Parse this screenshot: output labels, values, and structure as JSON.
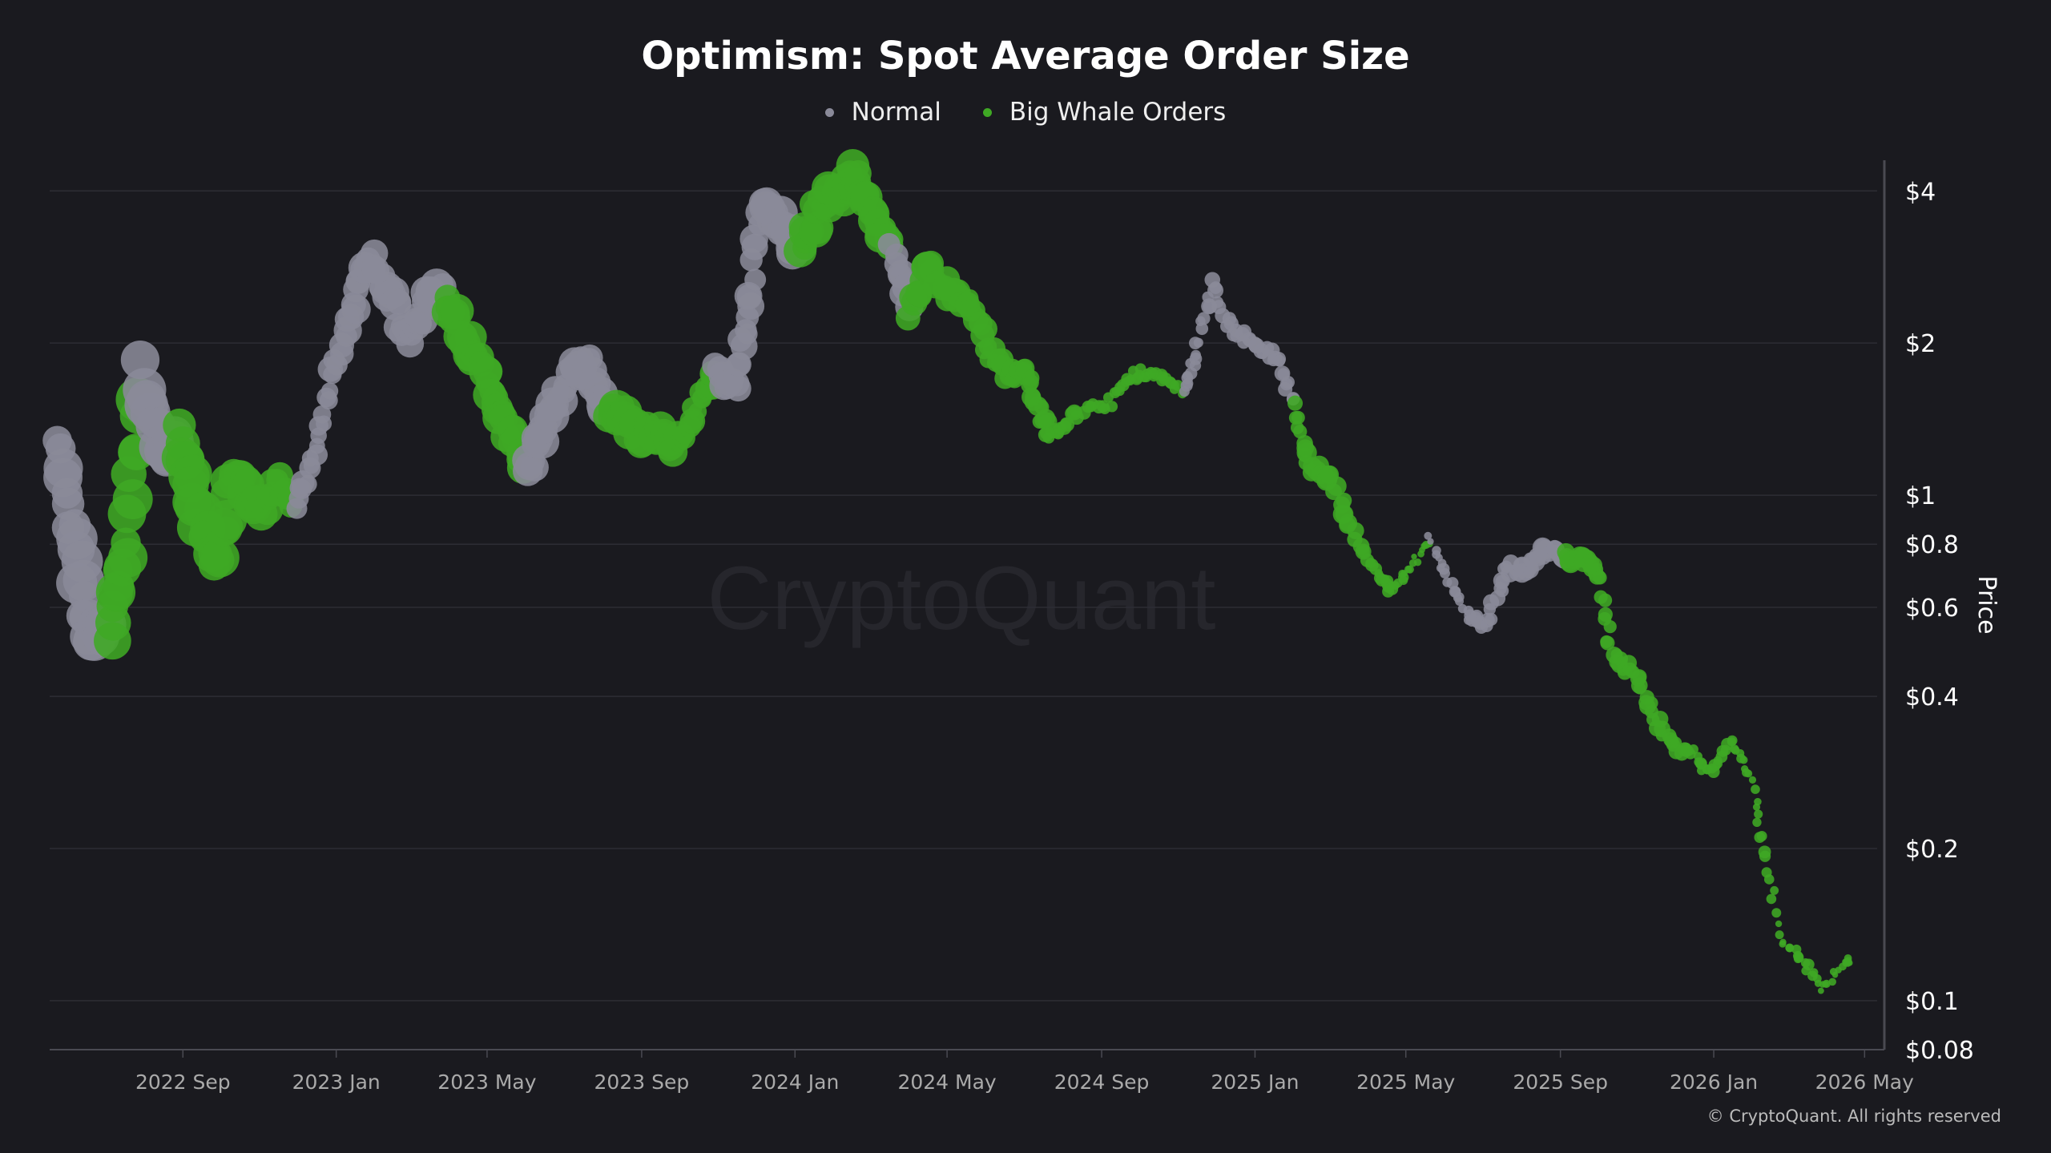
{
  "chart_data": {
    "type": "scatter",
    "title": "Optimism: Spot Average Order Size",
    "ylabel": "Price",
    "xlabel": "",
    "y_scale": "log",
    "ylim": [
      0.08,
      4.6
    ],
    "xlim": [
      "2022-05-18",
      "2026-05-11"
    ],
    "grid": true,
    "legend_position": "top",
    "legend": [
      {
        "key": "normal",
        "label": "Normal",
        "color": "#8a8a99"
      },
      {
        "key": "whale",
        "label": "Big Whale Orders",
        "color": "#3fa824"
      }
    ],
    "x_ticks": [
      {
        "date": "2022-09-01",
        "label": "2022 Sep"
      },
      {
        "date": "2023-01-01",
        "label": "2023 Jan"
      },
      {
        "date": "2023-05-01",
        "label": "2023 May"
      },
      {
        "date": "2023-09-01",
        "label": "2023 Sep"
      },
      {
        "date": "2024-01-01",
        "label": "2024 Jan"
      },
      {
        "date": "2024-05-01",
        "label": "2024 May"
      },
      {
        "date": "2024-09-01",
        "label": "2024 Sep"
      },
      {
        "date": "2025-01-01",
        "label": "2025 Jan"
      },
      {
        "date": "2025-05-01",
        "label": "2025 May"
      },
      {
        "date": "2025-09-01",
        "label": "2025 Sep"
      },
      {
        "date": "2026-01-01",
        "label": "2026 Jan"
      },
      {
        "date": "2026-05-01",
        "label": "2026 May"
      }
    ],
    "y_ticks": [
      {
        "value": 4,
        "label": "$4"
      },
      {
        "value": 2,
        "label": "$2"
      },
      {
        "value": 1,
        "label": "$1"
      },
      {
        "value": 0.8,
        "label": "$0.8"
      },
      {
        "value": 0.6,
        "label": "$0.6"
      },
      {
        "value": 0.4,
        "label": "$0.4"
      },
      {
        "value": 0.2,
        "label": "$0.2"
      },
      {
        "value": 0.1,
        "label": "$0.1"
      },
      {
        "value": 0.08,
        "label": "$0.08"
      }
    ],
    "points": [
      {
        "date": "2022-05-25",
        "price": 1.3,
        "class": "normal",
        "size": 10
      },
      {
        "date": "2022-06-08",
        "price": 0.75,
        "class": "normal",
        "size": 10
      },
      {
        "date": "2022-06-20",
        "price": 0.52,
        "class": "normal",
        "size": 10
      },
      {
        "date": "2022-07-05",
        "price": 0.55,
        "class": "whale",
        "size": 10
      },
      {
        "date": "2022-07-18",
        "price": 0.8,
        "class": "whale",
        "size": 10
      },
      {
        "date": "2022-07-30",
        "price": 1.8,
        "class": "normal",
        "size": 11
      },
      {
        "date": "2022-08-15",
        "price": 1.2,
        "class": "normal",
        "size": 10
      },
      {
        "date": "2022-08-28",
        "price": 1.3,
        "class": "whale",
        "size": 10
      },
      {
        "date": "2022-09-12",
        "price": 0.95,
        "class": "whale",
        "size": 10
      },
      {
        "date": "2022-09-28",
        "price": 0.72,
        "class": "whale",
        "size": 10
      },
      {
        "date": "2022-10-12",
        "price": 1.1,
        "class": "whale",
        "size": 9
      },
      {
        "date": "2022-10-28",
        "price": 0.95,
        "class": "whale",
        "size": 9
      },
      {
        "date": "2022-11-15",
        "price": 1.05,
        "class": "whale",
        "size": 7
      },
      {
        "date": "2022-11-30",
        "price": 0.95,
        "class": "normal",
        "size": 6
      },
      {
        "date": "2022-12-15",
        "price": 1.2,
        "class": "normal",
        "size": 5
      },
      {
        "date": "2022-12-28",
        "price": 1.7,
        "class": "normal",
        "size": 6
      },
      {
        "date": "2023-01-12",
        "price": 2.3,
        "class": "normal",
        "size": 7
      },
      {
        "date": "2023-01-28",
        "price": 2.9,
        "class": "normal",
        "size": 8
      },
      {
        "date": "2023-02-12",
        "price": 2.6,
        "class": "normal",
        "size": 8
      },
      {
        "date": "2023-02-28",
        "price": 2.0,
        "class": "normal",
        "size": 7
      },
      {
        "date": "2023-03-15",
        "price": 2.5,
        "class": "normal",
        "size": 8
      },
      {
        "date": "2023-03-30",
        "price": 2.5,
        "class": "whale",
        "size": 8
      },
      {
        "date": "2023-04-15",
        "price": 2.0,
        "class": "whale",
        "size": 8
      },
      {
        "date": "2023-05-01",
        "price": 1.7,
        "class": "whale",
        "size": 8
      },
      {
        "date": "2023-05-16",
        "price": 1.4,
        "class": "whale",
        "size": 8
      },
      {
        "date": "2023-06-01",
        "price": 1.1,
        "class": "normal",
        "size": 9
      },
      {
        "date": "2023-06-16",
        "price": 1.4,
        "class": "normal",
        "size": 9
      },
      {
        "date": "2023-07-05",
        "price": 1.7,
        "class": "normal",
        "size": 8
      },
      {
        "date": "2023-07-20",
        "price": 1.85,
        "class": "normal",
        "size": 7
      },
      {
        "date": "2023-08-05",
        "price": 1.45,
        "class": "whale",
        "size": 9
      },
      {
        "date": "2023-08-25",
        "price": 1.35,
        "class": "whale",
        "size": 8
      },
      {
        "date": "2023-09-15",
        "price": 1.3,
        "class": "whale",
        "size": 8
      },
      {
        "date": "2023-09-30",
        "price": 1.25,
        "class": "whale",
        "size": 7
      },
      {
        "date": "2023-10-15",
        "price": 1.5,
        "class": "whale",
        "size": 6
      },
      {
        "date": "2023-10-30",
        "price": 1.75,
        "class": "normal",
        "size": 7
      },
      {
        "date": "2023-11-15",
        "price": 1.65,
        "class": "normal",
        "size": 7
      },
      {
        "date": "2023-11-25",
        "price": 2.3,
        "class": "normal",
        "size": 7
      },
      {
        "date": "2023-12-05",
        "price": 3.8,
        "class": "normal",
        "size": 8
      },
      {
        "date": "2023-12-20",
        "price": 3.5,
        "class": "normal",
        "size": 8
      },
      {
        "date": "2024-01-05",
        "price": 3.1,
        "class": "whale",
        "size": 8
      },
      {
        "date": "2024-01-20",
        "price": 3.7,
        "class": "whale",
        "size": 8
      },
      {
        "date": "2024-02-05",
        "price": 4.0,
        "class": "whale",
        "size": 8
      },
      {
        "date": "2024-02-18",
        "price": 4.3,
        "class": "whale",
        "size": 8
      },
      {
        "date": "2024-03-02",
        "price": 3.6,
        "class": "whale",
        "size": 8
      },
      {
        "date": "2024-03-18",
        "price": 3.1,
        "class": "normal",
        "size": 7
      },
      {
        "date": "2024-04-01",
        "price": 2.3,
        "class": "whale",
        "size": 7
      },
      {
        "date": "2024-04-16",
        "price": 2.8,
        "class": "whale",
        "size": 8
      },
      {
        "date": "2024-05-05",
        "price": 2.5,
        "class": "whale",
        "size": 7
      },
      {
        "date": "2024-05-20",
        "price": 2.4,
        "class": "whale",
        "size": 6
      },
      {
        "date": "2024-06-05",
        "price": 1.9,
        "class": "whale",
        "size": 6
      },
      {
        "date": "2024-06-20",
        "price": 1.7,
        "class": "whale",
        "size": 5
      },
      {
        "date": "2024-07-01",
        "price": 1.8,
        "class": "whale",
        "size": 5
      },
      {
        "date": "2024-07-12",
        "price": 1.5,
        "class": "whale",
        "size": 5
      },
      {
        "date": "2024-07-22",
        "price": 1.3,
        "class": "whale",
        "size": 4
      },
      {
        "date": "2024-08-08",
        "price": 1.45,
        "class": "whale",
        "size": 4
      },
      {
        "date": "2024-09-05",
        "price": 1.5,
        "class": "whale",
        "size": 3
      },
      {
        "date": "2024-09-20",
        "price": 1.7,
        "class": "whale",
        "size": 3
      },
      {
        "date": "2024-10-05",
        "price": 1.75,
        "class": "whale",
        "size": 3
      },
      {
        "date": "2024-10-20",
        "price": 1.7,
        "class": "whale",
        "size": 3
      },
      {
        "date": "2024-11-05",
        "price": 1.6,
        "class": "normal",
        "size": 3
      },
      {
        "date": "2024-11-15",
        "price": 1.9,
        "class": "normal",
        "size": 3
      },
      {
        "date": "2024-11-28",
        "price": 2.6,
        "class": "normal",
        "size": 4
      },
      {
        "date": "2024-12-15",
        "price": 2.1,
        "class": "normal",
        "size": 4
      },
      {
        "date": "2025-01-02",
        "price": 2.0,
        "class": "normal",
        "size": 4
      },
      {
        "date": "2025-01-18",
        "price": 1.85,
        "class": "normal",
        "size": 4
      },
      {
        "date": "2025-02-01",
        "price": 1.5,
        "class": "whale",
        "size": 4
      },
      {
        "date": "2025-02-12",
        "price": 1.15,
        "class": "whale",
        "size": 5
      },
      {
        "date": "2025-03-01",
        "price": 1.1,
        "class": "whale",
        "size": 5
      },
      {
        "date": "2025-03-18",
        "price": 0.85,
        "class": "whale",
        "size": 5
      },
      {
        "date": "2025-04-08",
        "price": 0.7,
        "class": "whale",
        "size": 3
      },
      {
        "date": "2025-04-20",
        "price": 0.65,
        "class": "whale",
        "size": 3
      },
      {
        "date": "2025-05-05",
        "price": 0.72,
        "class": "whale",
        "size": 2
      },
      {
        "date": "2025-05-20",
        "price": 0.82,
        "class": "normal",
        "size": 2
      },
      {
        "date": "2025-06-05",
        "price": 0.68,
        "class": "normal",
        "size": 3
      },
      {
        "date": "2025-06-20",
        "price": 0.58,
        "class": "normal",
        "size": 3
      },
      {
        "date": "2025-07-05",
        "price": 0.55,
        "class": "normal",
        "size": 4
      },
      {
        "date": "2025-07-20",
        "price": 0.72,
        "class": "normal",
        "size": 4
      },
      {
        "date": "2025-08-05",
        "price": 0.72,
        "class": "normal",
        "size": 5
      },
      {
        "date": "2025-08-20",
        "price": 0.78,
        "class": "normal",
        "size": 5
      },
      {
        "date": "2025-09-05",
        "price": 0.75,
        "class": "whale",
        "size": 5
      },
      {
        "date": "2025-09-20",
        "price": 0.76,
        "class": "whale",
        "size": 5
      },
      {
        "date": "2025-10-01",
        "price": 0.7,
        "class": "whale",
        "size": 4
      },
      {
        "date": "2025-10-12",
        "price": 0.48,
        "class": "whale",
        "size": 4
      },
      {
        "date": "2025-10-28",
        "price": 0.45,
        "class": "whale",
        "size": 4
      },
      {
        "date": "2025-11-12",
        "price": 0.38,
        "class": "whale",
        "size": 4
      },
      {
        "date": "2025-11-28",
        "price": 0.32,
        "class": "whale",
        "size": 4
      },
      {
        "date": "2025-12-14",
        "price": 0.31,
        "class": "whale",
        "size": 3
      },
      {
        "date": "2025-12-30",
        "price": 0.28,
        "class": "whale",
        "size": 3
      },
      {
        "date": "2026-01-14",
        "price": 0.33,
        "class": "whale",
        "size": 3
      },
      {
        "date": "2026-01-30",
        "price": 0.28,
        "class": "whale",
        "size": 2
      },
      {
        "date": "2026-02-10",
        "price": 0.2,
        "class": "whale",
        "size": 3
      },
      {
        "date": "2026-02-25",
        "price": 0.13,
        "class": "whale",
        "size": 2
      },
      {
        "date": "2026-03-12",
        "price": 0.12,
        "class": "whale",
        "size": 3
      },
      {
        "date": "2026-03-28",
        "price": 0.105,
        "class": "whale",
        "size": 2
      },
      {
        "date": "2026-04-18",
        "price": 0.12,
        "class": "whale",
        "size": 2
      }
    ]
  },
  "watermark": "CryptoQuant",
  "copyright": "© CryptoQuant. All rights reserved"
}
